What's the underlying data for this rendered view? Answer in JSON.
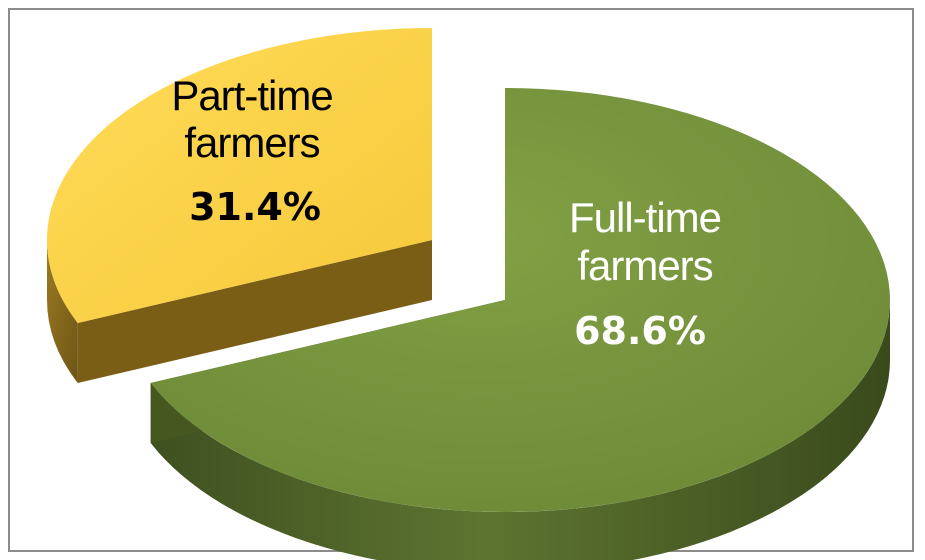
{
  "chart_data": {
    "type": "pie",
    "style": "3d-exploded",
    "title": "",
    "slices": [
      {
        "name_lines": [
          "Full-time",
          "farmers"
        ],
        "label": "68.6%",
        "value": 68.6,
        "color": "#76923c",
        "side_color": "#4f6228",
        "text_color": "#ffffff"
      },
      {
        "name_lines": [
          "Part-time",
          "farmers"
        ],
        "label": "31.4%",
        "value": 31.4,
        "color": "#ffd54a",
        "side_color": "#8a6b1a",
        "text_color": "#000000"
      }
    ],
    "legend": "none"
  }
}
